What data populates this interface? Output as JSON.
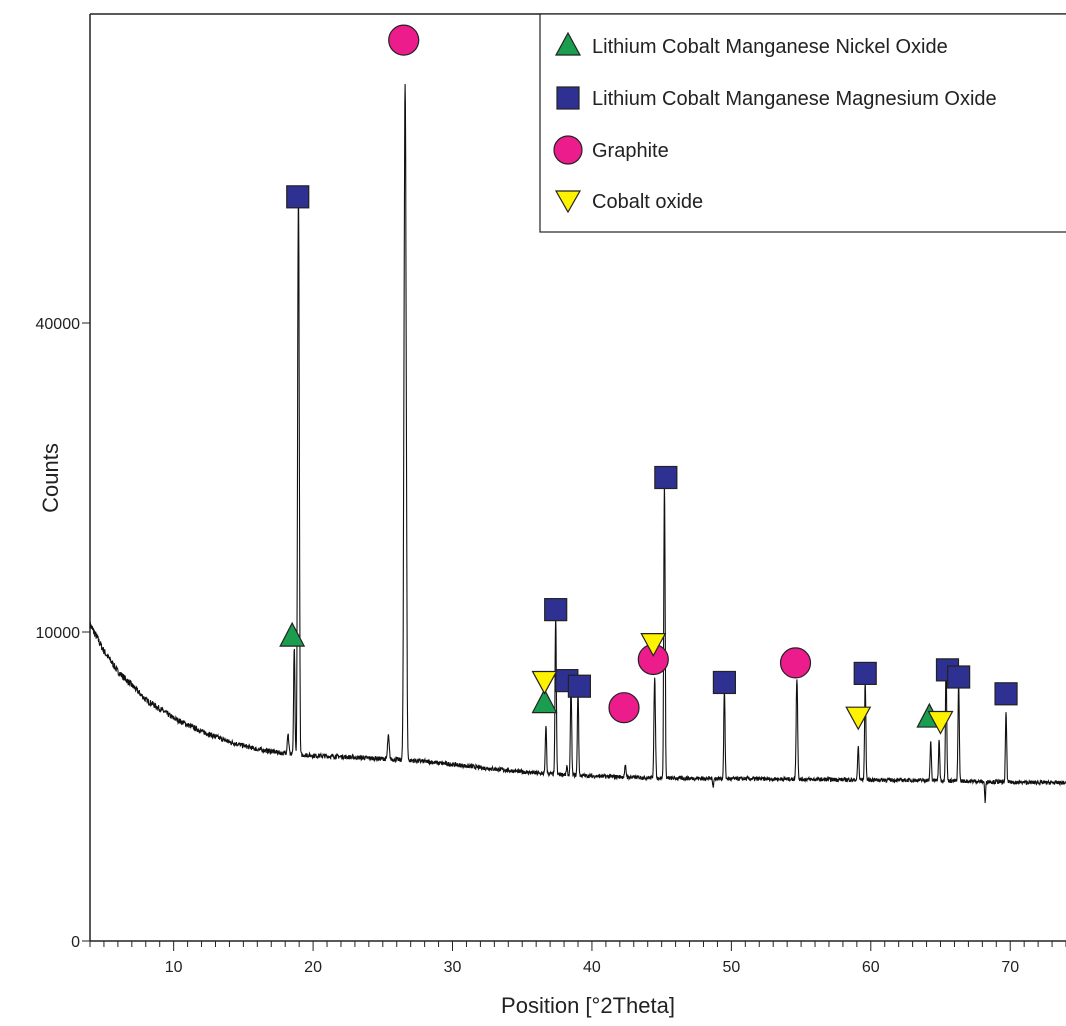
{
  "chart_data": {
    "type": "line",
    "title": "",
    "xlabel": "Position [°2Theta]",
    "ylabel": "Counts",
    "xlim": [
      4,
      74
    ],
    "ylim": [
      0,
      90000
    ],
    "y_scale": "sqrt",
    "grid": false,
    "legend_position": "top-right",
    "x_ticks": [
      10,
      20,
      30,
      40,
      50,
      60,
      70
    ],
    "x_tick_labels": [
      "10",
      "20",
      "30",
      "40",
      "50",
      "60",
      "70"
    ],
    "y_ticks": [
      0,
      10000,
      40000
    ],
    "y_tick_labels": [
      "0",
      "10000",
      "40000"
    ],
    "trace": {
      "baseline": [
        [
          4.0,
          10500
        ],
        [
          5.0,
          8800
        ],
        [
          6.0,
          7600
        ],
        [
          8.0,
          6100
        ],
        [
          10.0,
          5200
        ],
        [
          12.0,
          4600
        ],
        [
          14.0,
          4150
        ],
        [
          16.0,
          3850
        ],
        [
          18.0,
          3680
        ],
        [
          20.0,
          3600
        ],
        [
          22.0,
          3560
        ],
        [
          25.0,
          3480
        ],
        [
          28.0,
          3380
        ],
        [
          32.0,
          3150
        ],
        [
          36.0,
          2950
        ],
        [
          40.0,
          2850
        ],
        [
          45.0,
          2780
        ],
        [
          50.0,
          2760
        ],
        [
          55.0,
          2740
        ],
        [
          60.0,
          2720
        ],
        [
          65.0,
          2700
        ],
        [
          70.0,
          2640
        ],
        [
          74.0,
          2620
        ]
      ],
      "peaks": [
        {
          "x": 18.2,
          "y": 4500,
          "w": 0.08
        },
        {
          "x": 18.65,
          "y": 9000,
          "w": 0.06
        },
        {
          "x": 18.95,
          "y": 58000,
          "w": 0.07
        },
        {
          "x": 25.4,
          "y": 4400,
          "w": 0.08
        },
        {
          "x": 26.6,
          "y": 77000,
          "w": 0.09
        },
        {
          "x": 36.7,
          "y": 4900,
          "w": 0.06
        },
        {
          "x": 37.4,
          "y": 11000,
          "w": 0.06
        },
        {
          "x": 38.2,
          "y": 3200,
          "w": 0.05
        },
        {
          "x": 38.5,
          "y": 6800,
          "w": 0.06
        },
        {
          "x": 39.0,
          "y": 6500,
          "w": 0.06
        },
        {
          "x": 42.4,
          "y": 3200,
          "w": 0.07
        },
        {
          "x": 44.5,
          "y": 7200,
          "w": 0.07
        },
        {
          "x": 45.2,
          "y": 22000,
          "w": 0.06
        },
        {
          "x": 48.7,
          "y": 2500,
          "w": 0.05
        },
        {
          "x": 49.5,
          "y": 6600,
          "w": 0.06
        },
        {
          "x": 54.7,
          "y": 7200,
          "w": 0.07
        },
        {
          "x": 58.7,
          "y": 2700,
          "w": 0.05
        },
        {
          "x": 59.1,
          "y": 4000,
          "w": 0.06
        },
        {
          "x": 59.6,
          "y": 7000,
          "w": 0.06
        },
        {
          "x": 64.3,
          "y": 4200,
          "w": 0.06
        },
        {
          "x": 64.9,
          "y": 4200,
          "w": 0.06
        },
        {
          "x": 65.4,
          "y": 8000,
          "w": 0.06
        },
        {
          "x": 66.3,
          "y": 7000,
          "w": 0.06
        },
        {
          "x": 68.2,
          "y": 2000,
          "w": 0.05
        },
        {
          "x": 69.7,
          "y": 5500,
          "w": 0.06
        }
      ]
    },
    "markers": [
      {
        "x": 18.5,
        "y": 9800,
        "series": "lcmno"
      },
      {
        "x": 36.6,
        "y": 6000,
        "series": "lcmno"
      },
      {
        "x": 64.2,
        "y": 5300,
        "series": "lcmno"
      },
      {
        "x": 18.9,
        "y": 58000,
        "series": "lcmmo"
      },
      {
        "x": 37.4,
        "y": 11500,
        "series": "lcmmo"
      },
      {
        "x": 38.2,
        "y": 7100,
        "series": "lcmmo"
      },
      {
        "x": 39.1,
        "y": 6800,
        "series": "lcmmo"
      },
      {
        "x": 45.3,
        "y": 22500,
        "series": "lcmmo"
      },
      {
        "x": 49.5,
        "y": 7000,
        "series": "lcmmo"
      },
      {
        "x": 59.6,
        "y": 7500,
        "series": "lcmmo"
      },
      {
        "x": 65.5,
        "y": 7700,
        "series": "lcmmo"
      },
      {
        "x": 66.3,
        "y": 7300,
        "series": "lcmmo"
      },
      {
        "x": 69.7,
        "y": 6400,
        "series": "lcmmo"
      },
      {
        "x": 26.5,
        "y": 85000,
        "series": "graphite"
      },
      {
        "x": 42.3,
        "y": 5700,
        "series": "graphite"
      },
      {
        "x": 44.4,
        "y": 8300,
        "series": "graphite"
      },
      {
        "x": 54.6,
        "y": 8100,
        "series": "graphite"
      },
      {
        "x": 36.6,
        "y": 7000,
        "series": "cobalt"
      },
      {
        "x": 44.4,
        "y": 9200,
        "series": "cobalt"
      },
      {
        "x": 59.1,
        "y": 5200,
        "series": "cobalt"
      },
      {
        "x": 65.0,
        "y": 5000,
        "series": "cobalt"
      }
    ],
    "series": [
      {
        "id": "lcmno",
        "name": "Lithium Cobalt Manganese Nickel Oxide",
        "marker": "triangle-up",
        "color": "#1a9d4f"
      },
      {
        "id": "lcmmo",
        "name": "Lithium Cobalt Manganese Magnesium Oxide",
        "marker": "square",
        "color": "#2e3192"
      },
      {
        "id": "graphite",
        "name": "Graphite",
        "marker": "circle",
        "color": "#ec1c8c"
      },
      {
        "id": "cobalt",
        "name": "Cobalt oxide",
        "marker": "triangle-down",
        "color": "#fff200"
      }
    ]
  }
}
